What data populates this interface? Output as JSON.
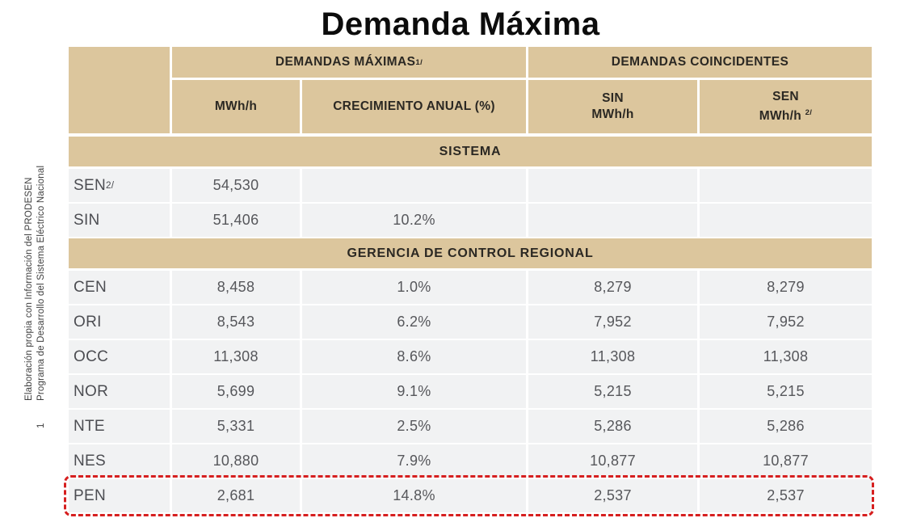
{
  "title": "Demanda Máxima",
  "side_note": {
    "line1": "Elaboración propia con Información del PRODESEN",
    "marker": "1",
    "line2": "Programa de Desarrollo del Sistema Eléctrico Nacional"
  },
  "colors": {
    "header_bg": "#dcc69d",
    "row_bg": "#f1f2f3",
    "header_text": "#2b2823",
    "data_text": "#56575b",
    "highlight_border": "#d61f1f"
  },
  "chart_data": {
    "type": "table",
    "title": "Demanda Máxima",
    "group_headers": [
      {
        "label": "DEMANDAS MÁXIMAS",
        "sup": "1/"
      },
      {
        "label": "DEMANDAS COINCIDENTES",
        "sup": ""
      }
    ],
    "sub_headers": [
      {
        "line1": "MWh/h",
        "line2": "",
        "sup": ""
      },
      {
        "line1": "CRECIMIENTO ANUAL (%)",
        "line2": "",
        "sup": ""
      },
      {
        "line1": "SIN",
        "line2": "MWh/h",
        "sup": ""
      },
      {
        "line1": "SEN",
        "line2": "MWh/h",
        "sup": "2/"
      }
    ],
    "columns": [
      "",
      "MWh/h",
      "CRECIMIENTO ANUAL (%)",
      "SIN MWh/h",
      "SEN MWh/h 2/"
    ],
    "sections": [
      {
        "label": "SISTEMA",
        "rows": [
          {
            "name": "SEN",
            "sup": "2/",
            "mwh": "54,530",
            "growth": "",
            "sin": "",
            "sen": "",
            "highlighted": false
          },
          {
            "name": "SIN",
            "sup": "",
            "mwh": "51,406",
            "growth": "10.2%",
            "sin": "",
            "sen": "",
            "highlighted": false
          }
        ]
      },
      {
        "label": "GERENCIA DE CONTROL REGIONAL",
        "rows": [
          {
            "name": "CEN",
            "sup": "",
            "mwh": "8,458",
            "growth": "1.0%",
            "sin": "8,279",
            "sen": "8,279",
            "highlighted": false
          },
          {
            "name": "ORI",
            "sup": "",
            "mwh": "8,543",
            "growth": "6.2%",
            "sin": "7,952",
            "sen": "7,952",
            "highlighted": false
          },
          {
            "name": "OCC",
            "sup": "",
            "mwh": "11,308",
            "growth": "8.6%",
            "sin": "11,308",
            "sen": "11,308",
            "highlighted": false
          },
          {
            "name": "NOR",
            "sup": "",
            "mwh": "5,699",
            "growth": "9.1%",
            "sin": "5,215",
            "sen": "5,215",
            "highlighted": false
          },
          {
            "name": "NTE",
            "sup": "",
            "mwh": "5,331",
            "growth": "2.5%",
            "sin": "5,286",
            "sen": "5,286",
            "highlighted": false
          },
          {
            "name": "NES",
            "sup": "",
            "mwh": "10,880",
            "growth": "7.9%",
            "sin": "10,877",
            "sen": "10,877",
            "highlighted": false
          },
          {
            "name": "PEN",
            "sup": "",
            "mwh": "2,681",
            "growth": "14.8%",
            "sin": "2,537",
            "sen": "2,537",
            "highlighted": true
          }
        ]
      }
    ],
    "highlighted_row": "PEN"
  }
}
